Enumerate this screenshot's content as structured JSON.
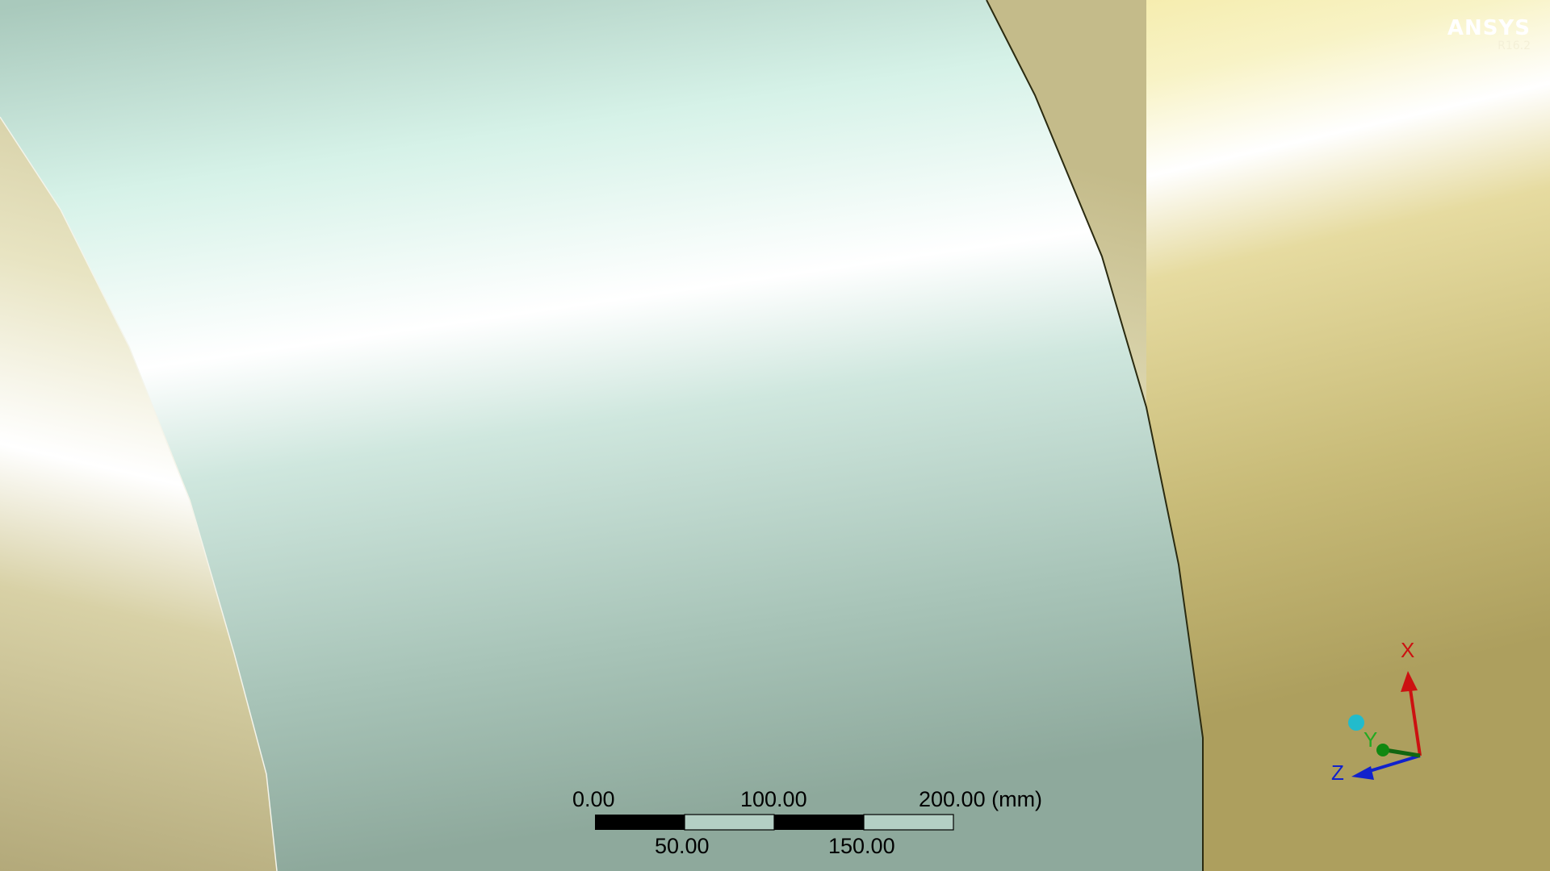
{
  "logo": {
    "brand": "ANSYS",
    "version": "R16.2"
  },
  "scale_bar": {
    "top_labels": [
      "0.00",
      "100.00",
      "200.00 (mm)"
    ],
    "bottom_labels": [
      "50.00",
      "150.00"
    ]
  },
  "triad": {
    "x_label": "X",
    "y_label": "Y",
    "z_label": "Z",
    "colors": {
      "x": "#cc1111",
      "y": "#118811",
      "z": "#1122cc",
      "iso_ball": "#22bbcc"
    }
  },
  "colors": {
    "body_main": "#b8d6cc",
    "body_side": "#d2c88a",
    "edge": "#2a2a10"
  }
}
